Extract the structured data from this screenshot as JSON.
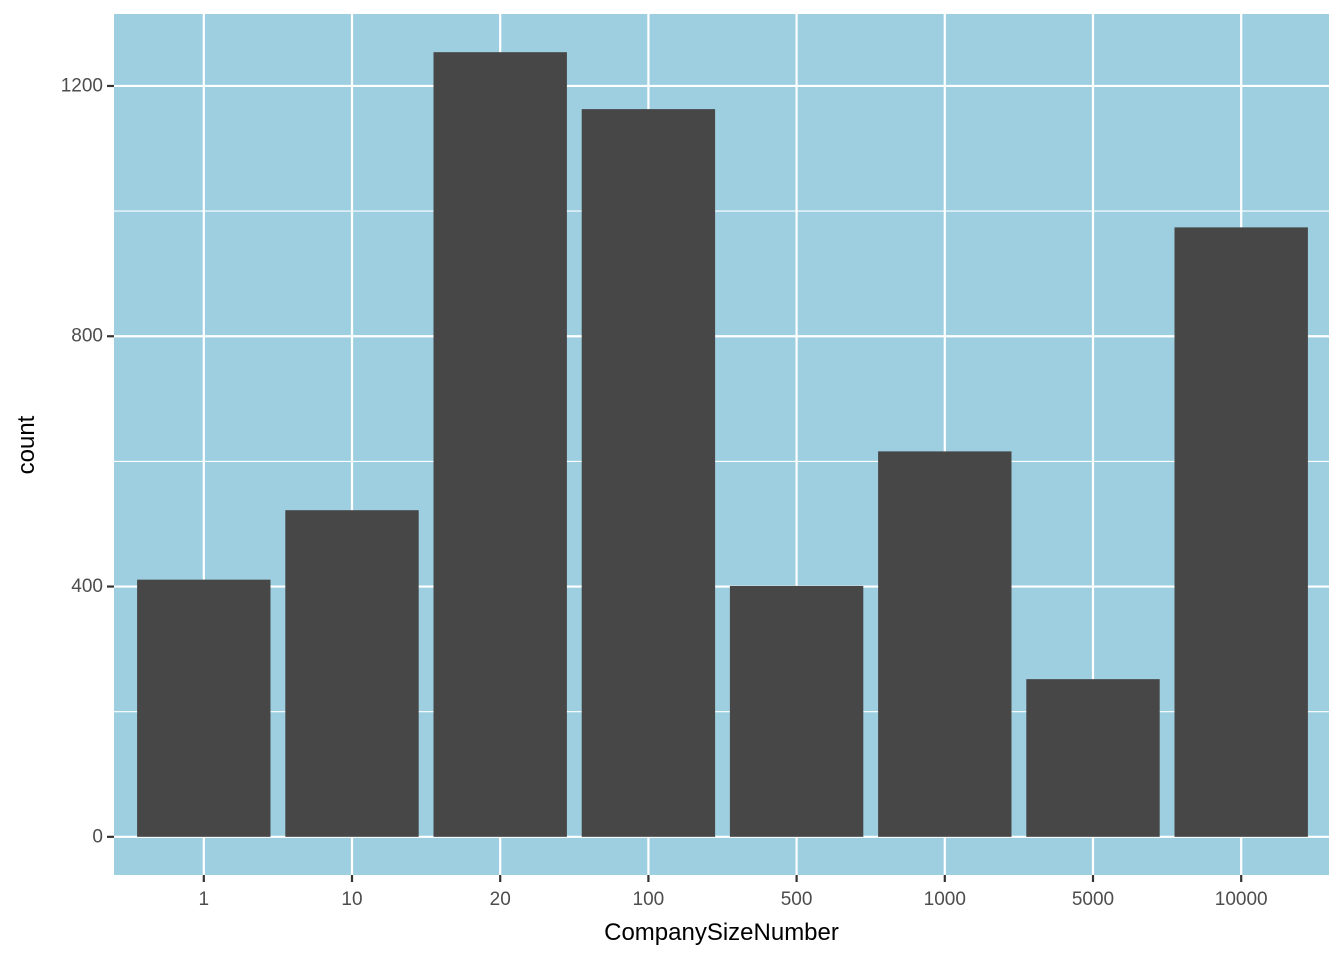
{
  "chart_data": {
    "type": "bar",
    "title": "",
    "xlabel": "CompanySizeNumber",
    "ylabel": "count",
    "categories": [
      "1",
      "10",
      "20",
      "100",
      "500",
      "1000",
      "5000",
      "10000"
    ],
    "values": [
      411,
      522,
      1254,
      1163,
      401,
      616,
      252,
      974
    ],
    "ylim": [
      -61,
      1315
    ],
    "y_ticks": [
      0,
      400,
      800,
      1200
    ],
    "y_tick_labels": [
      "0",
      "400",
      "800",
      "1200"
    ],
    "y_minor_ticks": [
      200,
      600,
      1000
    ],
    "grid": true,
    "colors": {
      "panel_background": "#9ecfe0",
      "grid": "#ffffff",
      "bar_fill": "#474747",
      "tick_mark": "#333333"
    }
  }
}
